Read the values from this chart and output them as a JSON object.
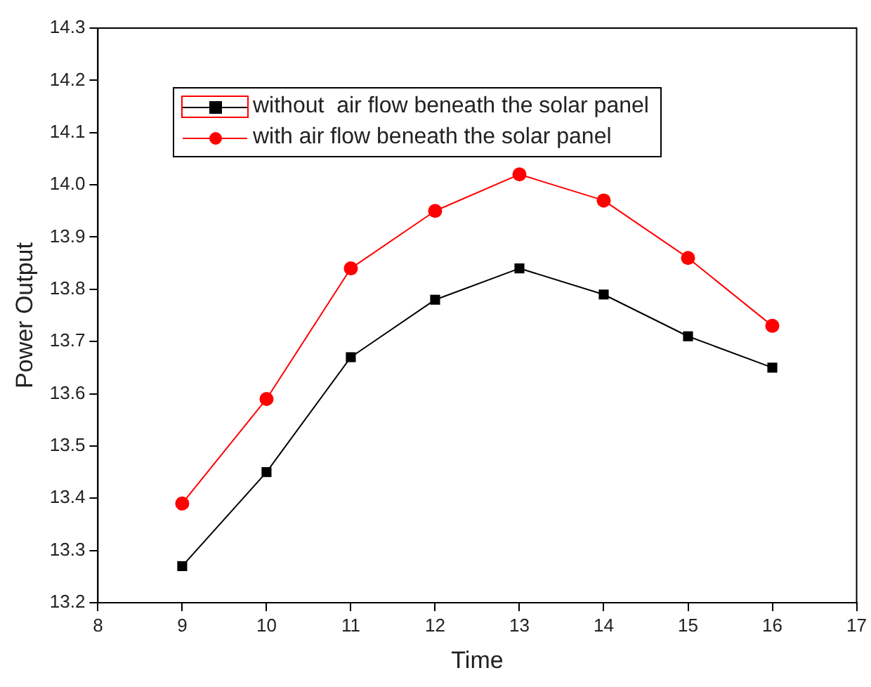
{
  "chart_data": {
    "type": "line",
    "xlabel": "Time",
    "ylabel": "Power Output",
    "x": [
      9,
      10,
      11,
      12,
      13,
      14,
      15,
      16
    ],
    "series": [
      {
        "name": "without  air flow beneath the solar panel",
        "color": "#000000",
        "marker": "square",
        "values": [
          13.27,
          13.45,
          13.67,
          13.78,
          13.84,
          13.79,
          13.71,
          13.65
        ]
      },
      {
        "name": "with air flow beneath the solar panel",
        "color": "#ff0000",
        "marker": "circle",
        "values": [
          13.39,
          13.59,
          13.84,
          13.95,
          14.02,
          13.97,
          13.86,
          13.73
        ]
      }
    ],
    "xlim": [
      8,
      17
    ],
    "xticks": [
      8,
      9,
      10,
      11,
      12,
      13,
      14,
      15,
      16,
      17
    ],
    "ylim": [
      13.2,
      14.3
    ],
    "yticks": [
      13.2,
      13.3,
      13.4,
      13.5,
      13.6,
      13.7,
      13.8,
      13.9,
      {
        "value": 14,
        "label": "14.0"
      },
      14.1,
      14.2,
      14.3
    ],
    "grid": false,
    "legend": "top left",
    "line_style": "solid"
  }
}
